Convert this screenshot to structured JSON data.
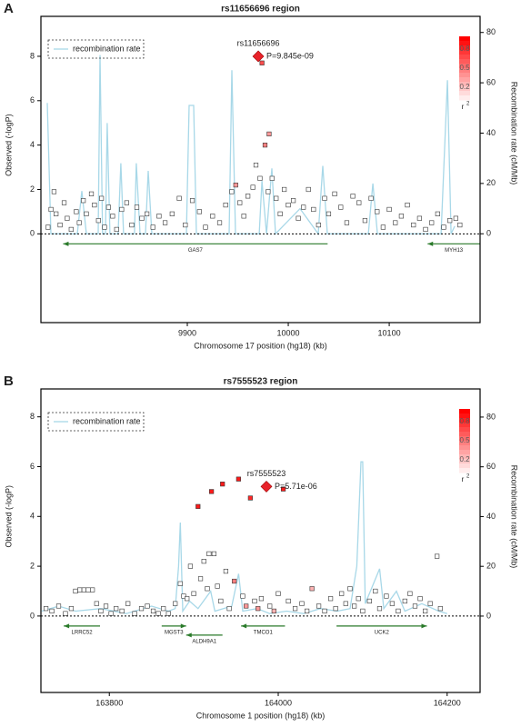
{
  "chart_data": [
    {
      "panel": "A",
      "type": "scatter",
      "title": "rs11656696 region",
      "xlabel": "Chromosome 17 position (hg18) (kb)",
      "ylabel": "Observed (-logP)",
      "y2label": "Recombination rate (cM/Mb)",
      "xlim": [
        9755,
        10190
      ],
      "ylim": [
        -4,
        9.8
      ],
      "y2lim": [
        -35.3,
        86.4
      ],
      "xticks": [
        9900,
        10000,
        10100
      ],
      "yticks": [
        0,
        2,
        4,
        6,
        8
      ],
      "y2ticks": [
        0,
        20,
        40,
        60,
        80
      ],
      "snps": {
        "x": [
          9762,
          9765,
          9768,
          9770,
          9774,
          9778,
          9781,
          9785,
          9790,
          9793,
          9797,
          9800,
          9805,
          9808,
          9812,
          9815,
          9818,
          9822,
          9826,
          9830,
          9835,
          9840,
          9845,
          9850,
          9855,
          9860,
          9866,
          9872,
          9878,
          9885,
          9892,
          9898,
          9905,
          9912,
          9918,
          9925,
          9932,
          9938,
          9944,
          9948,
          9952,
          9956,
          9960,
          9965,
          9968,
          9974,
          9972,
          9981,
          9977,
          9980,
          9984,
          9988,
          9992,
          9996,
          10000,
          10005,
          10010,
          10015,
          10020,
          10025,
          10030,
          10036,
          10040,
          10046,
          10052,
          10058,
          10064,
          10070,
          10076,
          10082,
          10088,
          10094,
          10100,
          10106,
          10112,
          10118,
          10124,
          10130,
          10136,
          10142,
          10148,
          10154,
          10160,
          10166,
          10170
        ],
        "values": [
          0.3,
          1.1,
          1.9,
          0.9,
          0.4,
          1.4,
          0.7,
          0.2,
          1.0,
          0.5,
          1.5,
          0.9,
          1.8,
          1.3,
          0.6,
          1.6,
          0.3,
          1.2,
          0.8,
          0.2,
          1.1,
          1.4,
          0.4,
          1.2,
          0.7,
          0.9,
          0.3,
          0.8,
          0.5,
          0.9,
          1.6,
          0.4,
          1.5,
          1.0,
          0.3,
          0.8,
          0.5,
          1.3,
          1.9,
          2.2,
          1.4,
          0.8,
          1.7,
          2.1,
          3.1,
          7.7,
          2.5,
          4.5,
          4.0,
          1.9,
          2.5,
          1.6,
          0.9,
          2.0,
          1.3,
          1.5,
          0.7,
          1.2,
          2.0,
          1.1,
          0.4,
          1.6,
          0.9,
          1.8,
          1.2,
          0.5,
          1.7,
          1.4,
          0.6,
          1.6,
          1.0,
          0.3,
          1.1,
          0.5,
          0.8,
          1.3,
          0.4,
          0.7,
          0.2,
          0.5,
          0.9,
          0.3,
          0.6,
          0.7,
          0.4
        ],
        "r2": [
          0,
          0,
          0,
          0,
          0,
          0,
          0,
          0,
          0,
          0,
          0,
          0,
          0,
          0,
          0,
          0,
          0,
          0,
          0,
          0,
          0,
          0,
          0,
          0,
          0,
          0,
          0,
          0,
          0,
          0,
          0,
          0,
          0,
          0,
          0,
          0,
          0,
          0,
          0,
          0.4,
          0,
          0,
          0,
          0,
          0,
          0.7,
          0,
          0.4,
          0.5,
          0,
          0,
          0,
          0,
          0,
          0,
          0,
          0,
          0,
          0,
          0,
          0,
          0,
          0,
          0,
          0,
          0,
          0,
          0,
          0,
          0,
          0,
          0,
          0,
          0,
          0,
          0,
          0,
          0,
          0,
          0,
          0,
          0,
          0,
          0,
          0
        ]
      },
      "lead": {
        "name": "rs11656696",
        "x": 9970.3,
        "value": 8.0,
        "p_label": "P=9.845e-09",
        "color": "#e8222a"
      },
      "recombination": {
        "name": "recombination rate",
        "color": "#a8d8e8",
        "axis": "y2",
        "x": [
          9761.3,
          9764.9,
          9791.0,
          9795.5,
          9800.0,
          9811.7,
          9813.5,
          9816.1,
          9818.9,
          9820.7,
          9823.4,
          9831.5,
          9834.2,
          9836.9,
          9847.7,
          9849.5,
          9853.2,
          9858.6,
          9861.3,
          9864.9,
          9899.1,
          9901.8,
          9906.3,
          9909.0,
          9930.6,
          9941.4,
          9944.1,
          9947.7,
          9971.2,
          9973.9,
          9978.4,
          9983.8,
          9987.4,
          10011.7,
          10029.7,
          10034.2,
          10038.7,
          10079.3,
          10083.8,
          10088.3,
          10151.4,
          10157.7,
          10161.3,
          10164.9
        ],
        "values": [
          52,
          0,
          0,
          17,
          0,
          0,
          71,
          0,
          0,
          44,
          0,
          0,
          28,
          0,
          0,
          28,
          0,
          0,
          25,
          0,
          0,
          51,
          51,
          0,
          0,
          0,
          65,
          0,
          0,
          21,
          0,
          26,
          0,
          10,
          0,
          27,
          0,
          0,
          20,
          0,
          0,
          61,
          0,
          3
        ]
      },
      "genes": [
        {
          "name": "GAS7",
          "start": 10039,
          "end": 9777
        },
        {
          "name": "MYH13",
          "start": 10190,
          "end": 10138
        }
      ],
      "gene_color": "#2a7a2a",
      "r2_legend": {
        "label": "r",
        "label_sup": "2",
        "ticks": [
          0.8,
          0.5,
          0.2
        ],
        "color": "#ff0000"
      }
    },
    {
      "panel": "B",
      "type": "scatter",
      "title": "rs7555523 region",
      "xlabel": "Chromosome 1 position (hg18) (kb)",
      "ylabel": "Observed (-logP)",
      "y2label": "Recombination rate (cM/Mb)",
      "xlim": [
        163719,
        164239
      ],
      "ylim": [
        -3.07,
        9.12
      ],
      "y2lim": [
        -30.7,
        91.3
      ],
      "xticks": [
        163800,
        164000,
        164200
      ],
      "yticks": [
        0,
        2,
        4,
        6,
        8
      ],
      "y2ticks": [
        0,
        20,
        40,
        60,
        80
      ],
      "snps": {
        "x": [
          163725,
          163732,
          163740,
          163748,
          163755,
          163760,
          163765,
          163770,
          163775,
          163780,
          163785,
          163790,
          163796,
          163802,
          163808,
          163815,
          163822,
          163830,
          163838,
          163845,
          163852,
          163858,
          163864,
          163870,
          163878,
          163884,
          163888,
          163892,
          163896,
          163900,
          163905,
          163908,
          163912,
          163916,
          163918,
          163921,
          163924,
          163928,
          163932,
          163934,
          163938,
          163942,
          163948,
          163953,
          163958,
          163962,
          163967,
          163972,
          163976,
          163980,
          163990,
          163995,
          164000,
          164006,
          164012,
          164020,
          164028,
          164034,
          164040,
          164048,
          164055,
          164062,
          164068,
          164075,
          164080,
          164085,
          164090,
          164095,
          164100,
          164108,
          164115,
          164120,
          164128,
          164135,
          164142,
          164150,
          164156,
          164162,
          164168,
          164174,
          164180,
          164188,
          164192
        ],
        "values": [
          0.3,
          0.2,
          0.4,
          0.1,
          0.3,
          1.0,
          1.05,
          1.05,
          1.05,
          1.05,
          0.5,
          0.2,
          0.4,
          0.1,
          0.3,
          0.2,
          0.5,
          0.1,
          0.3,
          0.4,
          0.2,
          0.1,
          0.3,
          0.1,
          0.5,
          1.3,
          0.8,
          0.7,
          2.0,
          0.9,
          4.4,
          1.5,
          2.2,
          1.1,
          2.5,
          5.0,
          2.5,
          1.2,
          0.6,
          5.3,
          1.8,
          0.3,
          1.4,
          5.5,
          0.8,
          0.4,
          4.74,
          0.6,
          0.3,
          0.7,
          0.4,
          0.2,
          0.9,
          5.1,
          0.6,
          0.3,
          0.5,
          0.2,
          1.1,
          0.4,
          0.2,
          0.7,
          0.3,
          0.9,
          0.5,
          1.1,
          0.4,
          0.7,
          0.2,
          0.6,
          1.0,
          0.3,
          0.8,
          0.5,
          0.2,
          0.6,
          0.9,
          0.4,
          0.7,
          0.2,
          0.5,
          2.4,
          0.3
        ],
        "r2": [
          0,
          0,
          0,
          0,
          0,
          0,
          0,
          0,
          0,
          0,
          0,
          0,
          0,
          0,
          0,
          0,
          0,
          0,
          0,
          0,
          0,
          0,
          0,
          0,
          0,
          0,
          0,
          0,
          0,
          0,
          0.9,
          0,
          0,
          0,
          0,
          0.9,
          0,
          0,
          0,
          0.9,
          0,
          0,
          0.5,
          0.9,
          0,
          0.4,
          0.85,
          0,
          0.4,
          0,
          0,
          0.3,
          0,
          0.9,
          0,
          0,
          0,
          0,
          0.3,
          0,
          0,
          0,
          0,
          0,
          0,
          0,
          0,
          0,
          0,
          0,
          0,
          0,
          0,
          0,
          0,
          0,
          0,
          0,
          0,
          0,
          0,
          0,
          0
        ]
      },
      "lead": {
        "name": "rs7555523",
        "x": 163986,
        "value": 5.2,
        "p_label": "P=5.71e-06",
        "color": "#e8222a"
      },
      "recombination": {
        "name": "recombination rate",
        "color": "#a8d8e8",
        "axis": "y2",
        "x": [
          163720,
          163740,
          163760,
          163790,
          163820,
          163850,
          163870,
          163878,
          163882,
          163884,
          163887,
          163895,
          163905,
          163920,
          163925,
          163945,
          163953,
          163958,
          163975,
          163990,
          164010,
          164030,
          164050,
          164070,
          164085,
          164093,
          164098,
          164100,
          164103,
          164120,
          164125,
          164140,
          164150,
          164170,
          164190,
          164200
        ],
        "values": [
          2,
          4,
          2,
          3,
          1,
          4,
          2,
          3,
          20,
          37.6,
          2,
          6,
          3,
          10,
          2,
          4,
          17,
          2,
          3,
          1,
          2,
          1,
          3,
          2,
          3,
          20,
          62,
          62,
          5,
          19,
          3,
          10,
          2,
          5,
          2,
          1
        ]
      },
      "genes": [
        {
          "name": "LRRC52",
          "start": 163789,
          "end": 163746
        },
        {
          "name": "MGST3",
          "start": 163862,
          "end": 163891
        },
        {
          "name": "ALDH9A1",
          "start": 163934,
          "end": 163891
        },
        {
          "name": "TMCO1",
          "start": 164008,
          "end": 163956
        },
        {
          "name": "UCK2",
          "start": 164069,
          "end": 164176
        }
      ],
      "gene_color": "#2a7a2a",
      "r2_legend": {
        "label": "r",
        "label_sup": "2",
        "ticks": [
          0.8,
          0.5,
          0.2
        ],
        "color": "#ff0000"
      }
    }
  ]
}
